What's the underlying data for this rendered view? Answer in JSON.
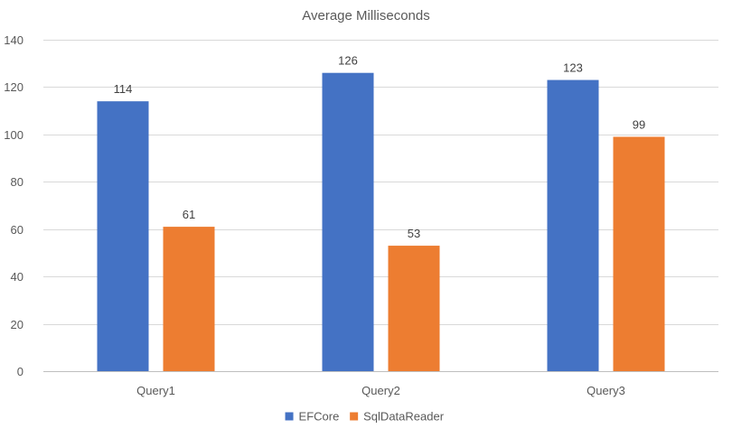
{
  "chart_data": {
    "type": "bar",
    "title": "Average Milliseconds",
    "xlabel": "",
    "ylabel": "",
    "categories": [
      "Query1",
      "Query2",
      "Query3"
    ],
    "series": [
      {
        "name": "EFCore",
        "values": [
          114,
          126,
          123
        ],
        "color": "#4472c4"
      },
      {
        "name": "SqlDataReader",
        "values": [
          61,
          53,
          99
        ],
        "color": "#ed7d31"
      }
    ],
    "ylim": [
      0,
      140
    ],
    "yticks": [
      0,
      20,
      40,
      60,
      80,
      100,
      120,
      140
    ],
    "grid": true,
    "legend": "bottom-center",
    "data_labels": true
  }
}
